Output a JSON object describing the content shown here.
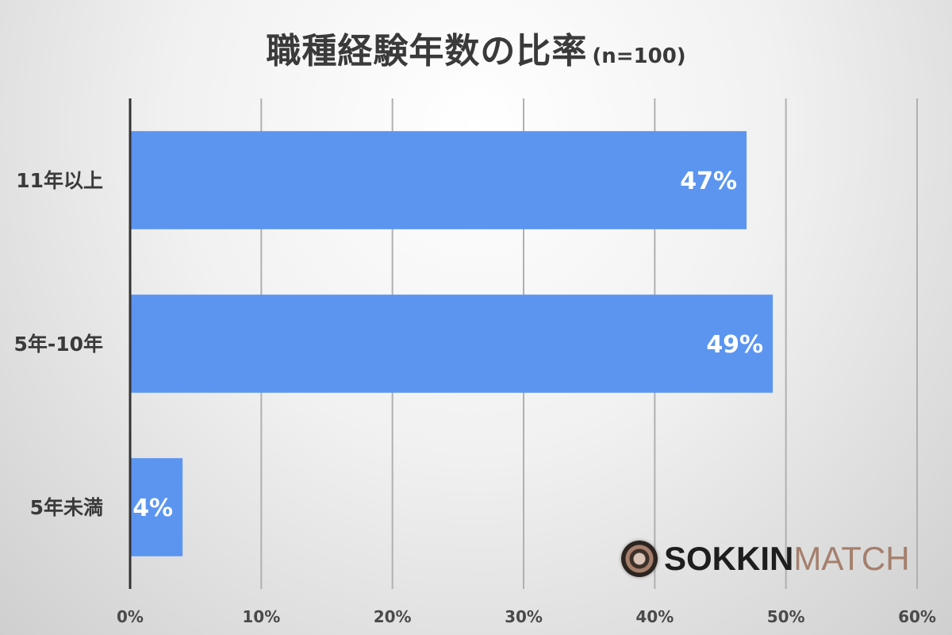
{
  "title": {
    "main": "職種経験年数の比率",
    "sub": "(n=100)"
  },
  "logo": {
    "part1": "SOKKIN",
    "part2": "MATCH"
  },
  "colors": {
    "bar": "#5b95f0",
    "grid": "#b0b0b0",
    "axis": "#333333"
  },
  "chart_data": {
    "type": "bar",
    "orientation": "horizontal",
    "categories": [
      "11年以上",
      "5年-10年",
      "5年未満"
    ],
    "values": [
      47,
      49,
      4
    ],
    "data_labels": [
      "47%",
      "49%",
      "4%"
    ],
    "xlim": [
      0,
      60
    ],
    "x_ticks": [
      "0%",
      "10%",
      "20%",
      "30%",
      "40%",
      "50%",
      "60%"
    ],
    "grid": true
  }
}
